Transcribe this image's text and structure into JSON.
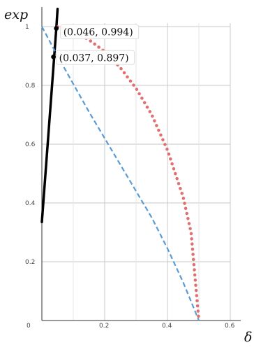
{
  "chart_data": {
    "type": "line",
    "xlabel": "δ",
    "ylabel": "exp",
    "xlim": [
      0,
      0.6
    ],
    "ylim": [
      0,
      1
    ],
    "x_ticks": [
      {
        "value": 0,
        "label": "0"
      },
      {
        "value": 0.2,
        "label": "0.2"
      },
      {
        "value": 0.4,
        "label": "0.4"
      },
      {
        "value": 0.6,
        "label": "0.6"
      }
    ],
    "y_ticks": [
      {
        "value": 0.2,
        "label": "0.2"
      },
      {
        "value": 0.4,
        "label": "0.4"
      },
      {
        "value": 0.6,
        "label": "0.6"
      },
      {
        "value": 0.8,
        "label": "0.8"
      },
      {
        "value": 1,
        "label": "1"
      }
    ],
    "grid": true,
    "series": [
      {
        "style": "solid",
        "color": "#000000",
        "x": [
          0,
          0.046,
          0.05
        ],
        "y": [
          0.335,
          0.994,
          1.06
        ]
      },
      {
        "style": "dashed",
        "color": "#5b9bd5",
        "x": [
          0,
          0.05,
          0.1,
          0.15,
          0.2,
          0.25,
          0.3,
          0.35,
          0.4,
          0.45,
          0.5
        ],
        "y": [
          1,
          0.9,
          0.805,
          0.71,
          0.62,
          0.53,
          0.44,
          0.35,
          0.245,
          0.13,
          0
        ]
      },
      {
        "style": "dotted",
        "color": "#e07070",
        "x": [
          0.05,
          0.1,
          0.15,
          0.2,
          0.25,
          0.3,
          0.35,
          0.4,
          0.45,
          0.475,
          0.5
        ],
        "y": [
          0.999,
          0.985,
          0.955,
          0.915,
          0.86,
          0.79,
          0.7,
          0.58,
          0.42,
          0.3,
          0
        ]
      }
    ],
    "points": [
      {
        "x": 0.046,
        "y": 0.994,
        "label": "(0.046, 0.994)"
      },
      {
        "x": 0.037,
        "y": 0.897,
        "label": "(0.037, 0.897)"
      }
    ]
  }
}
